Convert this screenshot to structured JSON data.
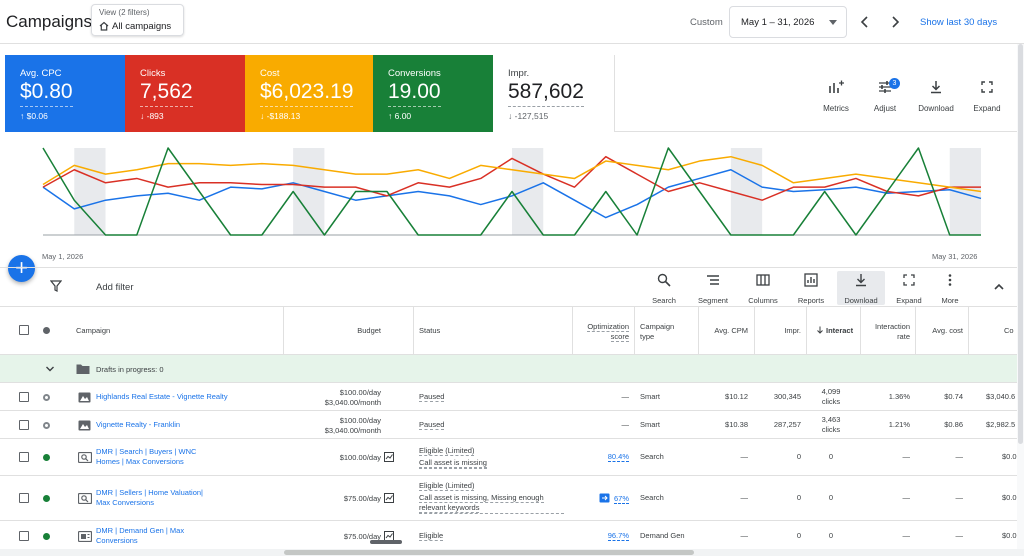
{
  "header": {
    "title": "Campaigns",
    "view_label": "View (2 filters)",
    "view_value": "All campaigns",
    "custom_label": "Custom",
    "date_range": "May 1 – 31, 2026",
    "show_last": "Show last 30 days"
  },
  "metrics": [
    {
      "name": "Avg. CPC",
      "value": "$0.80",
      "delta": "↑ $0.06",
      "color": "#1a73e8"
    },
    {
      "name": "Clicks",
      "value": "7,562",
      "delta": "↓ -893",
      "color": "#d93025"
    },
    {
      "name": "Cost",
      "value": "$6,023.19",
      "delta": "↓ -$188.13",
      "color": "#f9ab00"
    },
    {
      "name": "Conversions",
      "value": "19.00",
      "delta": "↑ 6.00",
      "color": "#188038"
    },
    {
      "name": "Impr.",
      "value": "587,602",
      "delta": "↓ -127,515",
      "color": "#ffffff"
    }
  ],
  "card_tools": {
    "metrics": "Metrics",
    "adjust": "Adjust",
    "adjust_badge": "3",
    "download": "Download",
    "expand": "Expand"
  },
  "chart": {
    "start_label": "May 1, 2026",
    "end_label": "May 31, 2026"
  },
  "chart_data": {
    "type": "line",
    "x": [
      "May 1",
      "May 2",
      "May 3",
      "May 4",
      "May 5",
      "May 6",
      "May 7",
      "May 8",
      "May 9",
      "May 10",
      "May 11",
      "May 12",
      "May 13",
      "May 14",
      "May 15",
      "May 16",
      "May 17",
      "May 18",
      "May 19",
      "May 20",
      "May 21",
      "May 22",
      "May 23",
      "May 24",
      "May 25",
      "May 26",
      "May 27",
      "May 28",
      "May 29",
      "May 30",
      "May 31"
    ],
    "series": [
      {
        "name": "Avg. CPC",
        "color": "#1a73e8",
        "values": [
          0.55,
          0.3,
          0.4,
          0.45,
          0.48,
          0.4,
          0.55,
          0.53,
          0.6,
          0.5,
          0.4,
          0.45,
          0.5,
          0.45,
          0.35,
          0.45,
          0.6,
          0.4,
          0.2,
          0.35,
          0.55,
          0.65,
          0.75,
          0.55,
          0.5,
          0.52,
          0.55,
          0.48,
          0.5,
          0.52,
          0.42
        ]
      },
      {
        "name": "Clicks",
        "color": "#d93025",
        "values": [
          0.55,
          0.75,
          0.6,
          0.65,
          0.55,
          0.6,
          0.6,
          0.58,
          0.58,
          0.55,
          0.55,
          0.45,
          0.6,
          0.55,
          0.65,
          0.88,
          0.7,
          0.55,
          0.9,
          0.7,
          0.5,
          0.6,
          0.5,
          0.4,
          0.55,
          0.55,
          0.65,
          0.5,
          0.45,
          0.55,
          0.55
        ]
      },
      {
        "name": "Cost",
        "color": "#f9ab00",
        "values": [
          0.58,
          0.8,
          0.7,
          0.75,
          0.82,
          0.82,
          0.8,
          0.82,
          0.8,
          0.75,
          0.7,
          0.7,
          0.75,
          0.65,
          0.8,
          0.75,
          0.7,
          0.65,
          0.85,
          0.8,
          0.75,
          0.85,
          0.9,
          0.8,
          0.6,
          0.65,
          0.7,
          0.65,
          0.6,
          0.55,
          0.5
        ]
      },
      {
        "name": "Conversions",
        "color": "#188038",
        "values": [
          1.0,
          0.4,
          0,
          0,
          1.0,
          0.5,
          0,
          0,
          0.5,
          0,
          0.5,
          0.5,
          0,
          0,
          0,
          0.5,
          0,
          0,
          0.5,
          0,
          1.0,
          0.5,
          0,
          0,
          0,
          0.5,
          0,
          0.5,
          1.0,
          0,
          0
        ]
      }
    ],
    "grid": false
  },
  "toolbar": {
    "add_filter": "Add filter",
    "search": "Search",
    "segment": "Segment",
    "columns": "Columns",
    "reports": "Reports",
    "download": "Download",
    "expand": "Expand",
    "more": "More"
  },
  "table": {
    "headers": {
      "campaign": "Campaign",
      "budget": "Budget",
      "status": "Status",
      "opt_score_1": "Optimization",
      "opt_score_2": "score",
      "type_1": "Campaign",
      "type_2": "type",
      "avg_cpm": "Avg. CPM",
      "impr": "Impr.",
      "interactions": "Interact",
      "interaction_rate_1": "Interaction",
      "interaction_rate_2": "rate",
      "avg_cost": "Avg. cost",
      "cost": "Co"
    },
    "drafts": "Drafts in progress: 0",
    "rows": [
      {
        "name": "Highlands Real Estate - Vignette Realty",
        "budget_1": "$100.00/day",
        "budget_2": "$3,040.00/month",
        "status": "Paused",
        "status_2": "",
        "opt": "—",
        "type": "Smart",
        "cpm": "$10.12",
        "impr": "300,345",
        "inter_1": "4,099",
        "inter_2": "clicks",
        "rate": "1.36%",
        "avg_cost": "$0.74",
        "cost": "$3,040.6"
      },
      {
        "name": "Vignette Realty - Franklin",
        "budget_1": "$100.00/day",
        "budget_2": "$3,040.00/month",
        "status": "Paused",
        "status_2": "",
        "opt": "—",
        "type": "Smart",
        "cpm": "$10.38",
        "impr": "287,257",
        "inter_1": "3,463",
        "inter_2": "clicks",
        "rate": "1.21%",
        "avg_cost": "$0.86",
        "cost": "$2,982.5"
      },
      {
        "name": "DMR | Search | Buyers | WNC Homes | Max Conversions",
        "budget_1": "$100.00/day",
        "budget_2": "",
        "status": "Eligible (Limited)",
        "status_2": "Call asset is missing",
        "opt": "80.4%",
        "type": "Search",
        "cpm": "—",
        "impr": "0",
        "inter_1": "0",
        "inter_2": "",
        "rate": "—",
        "avg_cost": "—",
        "cost": "$0.0"
      },
      {
        "name": "DMR | Sellers | Home Valuation| Max Conversions",
        "budget_1": "$75.00/day",
        "budget_2": "",
        "status": "Eligible (Limited)",
        "status_2": "Call asset is missing, Missing enough relevant keywords",
        "opt": "67%",
        "type": "Search",
        "cpm": "—",
        "impr": "0",
        "inter_1": "0",
        "inter_2": "",
        "rate": "—",
        "avg_cost": "—",
        "cost": "$0.0"
      },
      {
        "name": "DMR | Demand Gen | Max Conversions",
        "budget_1": "$75.00/day",
        "budget_2": "",
        "status": "Eligible",
        "status_2": "",
        "opt": "96.7%",
        "type": "Demand Gen",
        "cpm": "—",
        "impr": "0",
        "inter_1": "0",
        "inter_2": "",
        "rate": "—",
        "avg_cost": "—",
        "cost": "$0.0"
      }
    ]
  }
}
